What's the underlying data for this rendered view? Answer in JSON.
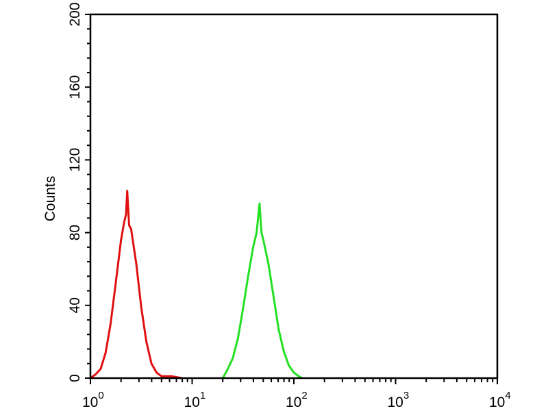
{
  "chart_data": {
    "type": "line",
    "title": "",
    "xlabel": "",
    "ylabel": "Counts",
    "x_scale": "log",
    "xlim": [
      1,
      10000
    ],
    "ylim": [
      0,
      200
    ],
    "grid": false,
    "y_ticks": [
      0,
      40,
      80,
      120,
      160,
      200
    ],
    "x_ticks": [
      {
        "base": "10",
        "exp": "0",
        "value": 1
      },
      {
        "base": "10",
        "exp": "1",
        "value": 10
      },
      {
        "base": "10",
        "exp": "2",
        "value": 100
      },
      {
        "base": "10",
        "exp": "3",
        "value": 1000
      },
      {
        "base": "10",
        "exp": "4",
        "value": 10000
      }
    ],
    "series": [
      {
        "color": "#e01010",
        "x": [
          1,
          1.12,
          1.26,
          1.41,
          1.58,
          1.78,
          2.0,
          2.15,
          2.24,
          2.3,
          2.4,
          2.51,
          2.82,
          3.16,
          3.55,
          3.98,
          4.47,
          5.01,
          6.31,
          7.94
        ],
        "y": [
          0,
          2,
          5,
          14,
          30,
          53,
          76,
          86,
          90,
          103,
          84,
          82,
          63,
          39,
          20,
          8,
          3,
          1,
          1,
          0
        ]
      },
      {
        "color": "#22e022",
        "x": [
          20,
          22.4,
          25.1,
          28.2,
          31.6,
          35.5,
          39.8,
          43,
          46,
          48,
          50.1,
          56.2,
          63.1,
          70.8,
          79.4,
          89.1,
          100,
          112,
          120
        ],
        "y": [
          0,
          5,
          11,
          22,
          38,
          56,
          72,
          80,
          96,
          80,
          76,
          63,
          45,
          27,
          15,
          7,
          3,
          1,
          0
        ]
      }
    ]
  }
}
